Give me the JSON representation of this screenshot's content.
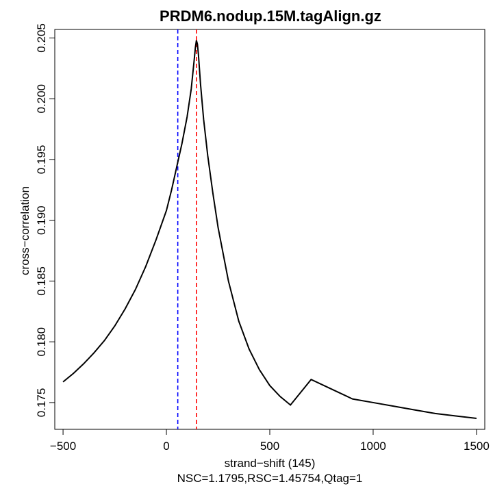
{
  "chart_data": {
    "type": "line",
    "title": "PRDM6.nodup.15M.tagAlign.gz",
    "xlabel": "strand−shift (145)",
    "ylabel": "cross−correlation",
    "subtitle": "NSC=1.1795,RSC=1.45754,Qtag=1",
    "xlim": [
      -540,
      1540
    ],
    "ylim": [
      0.1728,
      0.2057
    ],
    "xticks": [
      -500,
      0,
      500,
      1000,
      1500
    ],
    "xtick_labels": [
      "−500",
      "0",
      "500",
      "1000",
      "1500"
    ],
    "yticks": [
      0.175,
      0.18,
      0.185,
      0.19,
      0.195,
      0.2,
      0.205
    ],
    "ytick_labels": [
      "0.175",
      "0.180",
      "0.185",
      "0.190",
      "0.195",
      "0.200",
      "0.205"
    ],
    "grid": false,
    "series": [
      {
        "color": "#000000",
        "x": [
          -500,
          -450,
          -400,
          -350,
          -300,
          -250,
          -200,
          -150,
          -100,
          -50,
          0,
          25,
          50,
          75,
          100,
          120,
          135,
          140,
          145,
          150,
          155,
          165,
          180,
          200,
          225,
          250,
          300,
          350,
          400,
          450,
          500,
          550,
          600,
          700,
          800,
          900,
          1000,
          1100,
          1200,
          1300,
          1400,
          1500
        ],
        "y": [
          0.1767,
          0.1774,
          0.1782,
          0.1791,
          0.1801,
          0.1813,
          0.1827,
          0.1843,
          0.1862,
          0.1884,
          0.1908,
          0.1925,
          0.1944,
          0.1963,
          0.1985,
          0.2008,
          0.2033,
          0.2042,
          0.2048,
          0.2045,
          0.2036,
          0.2012,
          0.1983,
          0.1953,
          0.1922,
          0.1894,
          0.185,
          0.1817,
          0.1794,
          0.1777,
          0.1764,
          0.1755,
          0.1748,
          0.1769,
          0.1761,
          0.1753,
          0.175,
          0.1747,
          0.1744,
          0.1741,
          0.1739,
          0.1737
        ]
      }
    ],
    "vlines": [
      {
        "x": 55,
        "color": "#0000ff",
        "style": "dashed"
      },
      {
        "x": 145,
        "color": "#ff0000",
        "style": "dashed"
      }
    ]
  }
}
